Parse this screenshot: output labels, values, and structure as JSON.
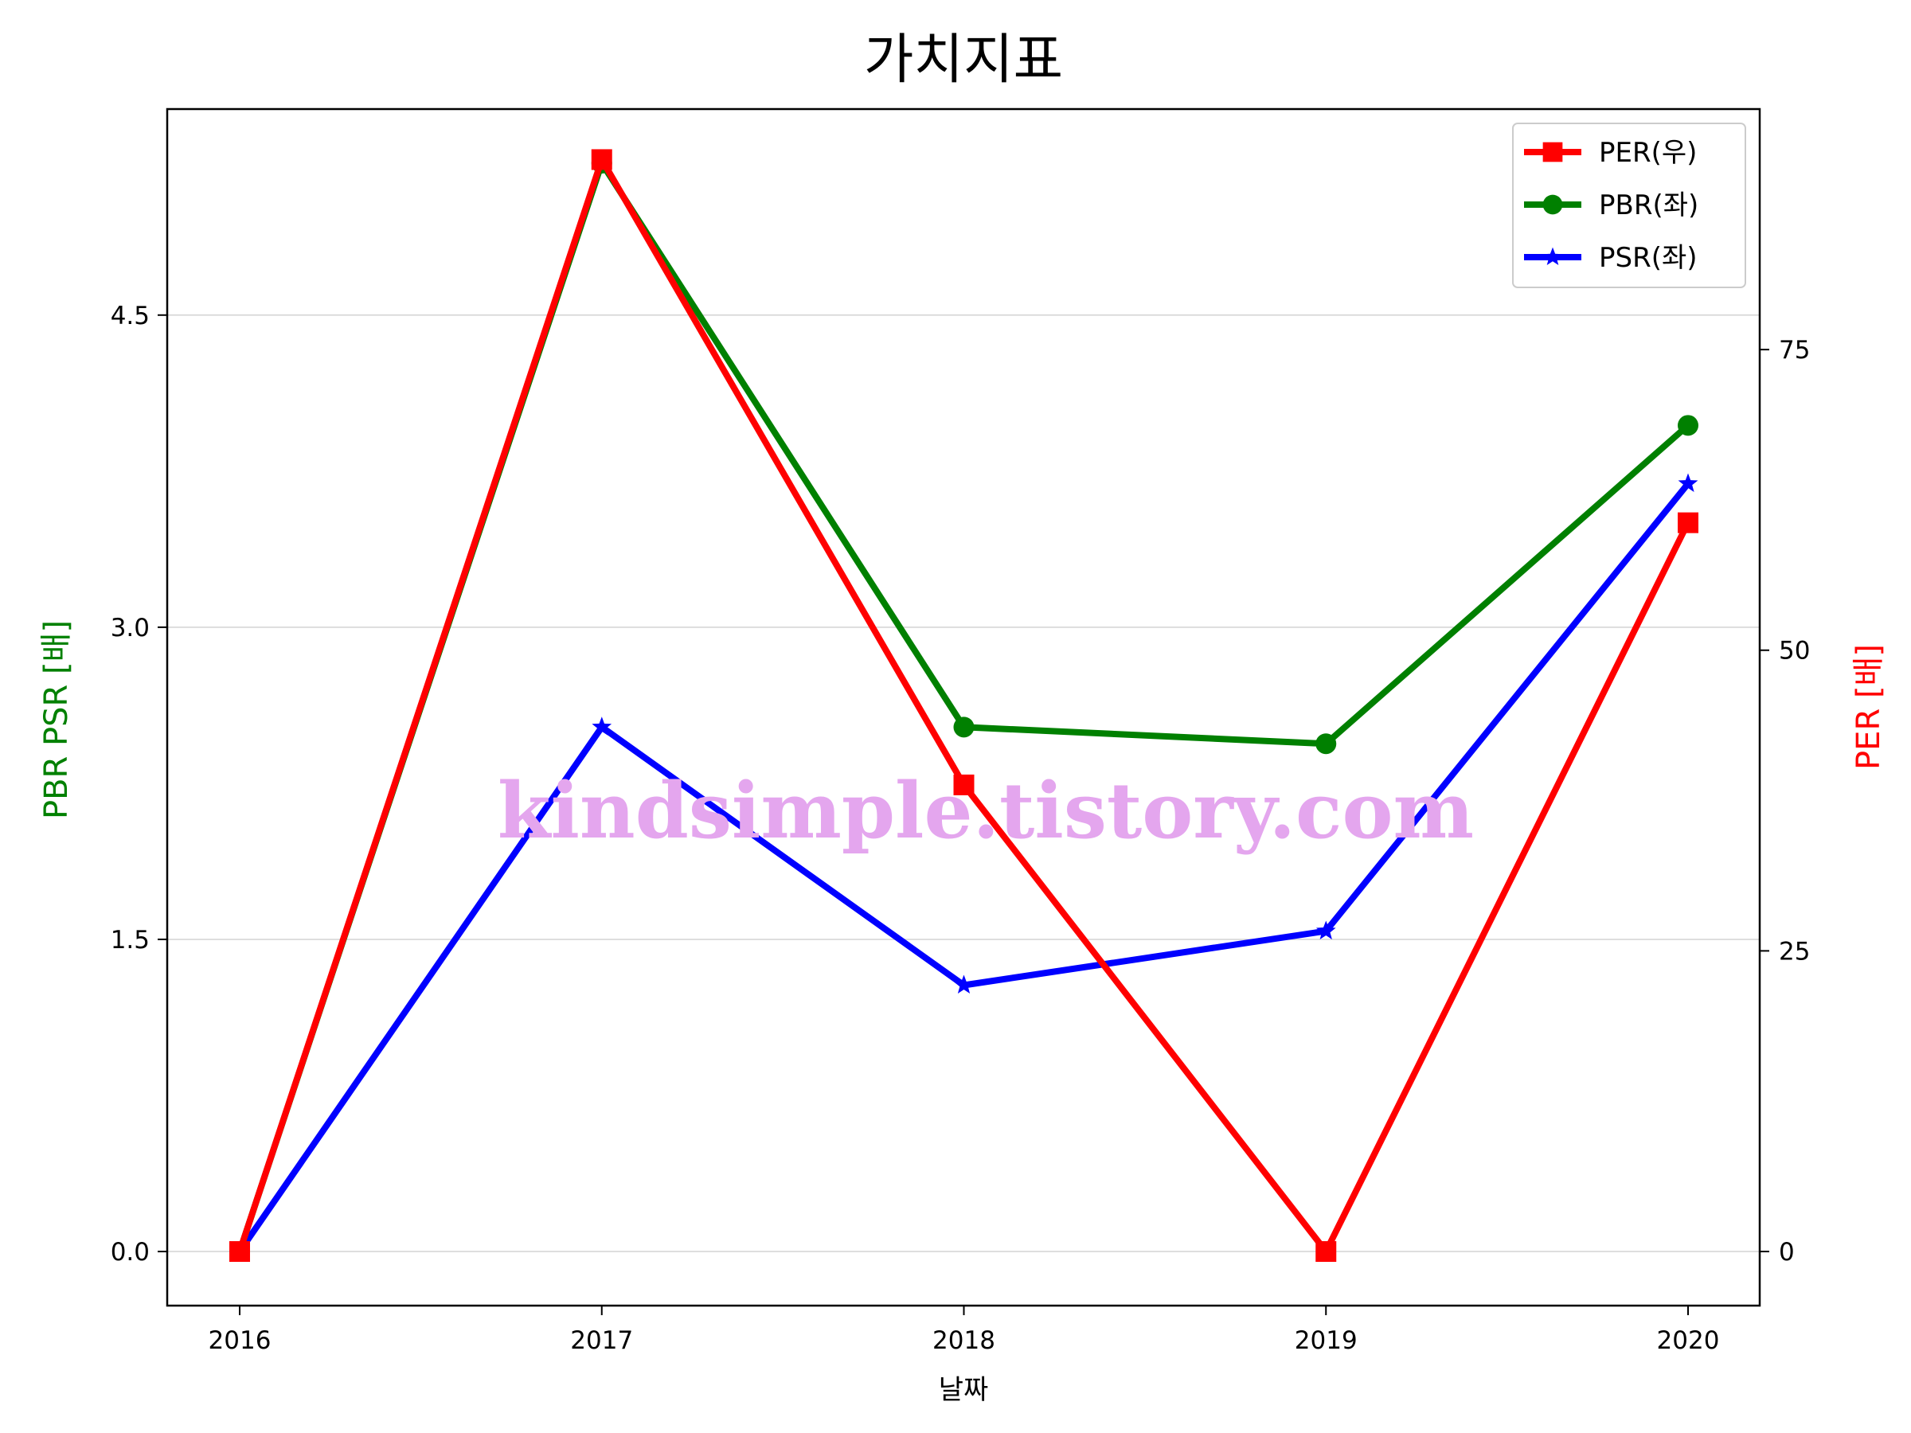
{
  "chart_data": {
    "type": "line",
    "title": "가치지표",
    "xlabel": "날짜",
    "ylabel_left": "PBR PSR [배]",
    "ylabel_right": "PER [배]",
    "categories": [
      "2016",
      "2017",
      "2018",
      "2019",
      "2020"
    ],
    "ylim_left": [
      -0.26,
      5.49
    ],
    "ylim_right": [
      -4.5,
      95.0
    ],
    "yticks_left": [
      "0.0",
      "1.5",
      "3.0",
      "4.5"
    ],
    "yticks_right": [
      "0",
      "25",
      "50",
      "75"
    ],
    "grid": "horizontal (left axis)",
    "legend_position": "top-right",
    "series": [
      {
        "name": "PER(우)",
        "axis": "right",
        "color": "#ff0000",
        "marker": "square",
        "values": [
          0,
          90.8,
          38.8,
          0,
          60.6
        ]
      },
      {
        "name": "PBR(좌)",
        "axis": "left",
        "color": "#008000",
        "marker": "circle",
        "values": [
          0,
          5.23,
          2.52,
          2.44,
          3.97
        ]
      },
      {
        "name": "PSR(좌)",
        "axis": "left",
        "color": "#0000ff",
        "marker": "star",
        "values": [
          0,
          2.52,
          1.28,
          1.54,
          3.69
        ]
      }
    ]
  },
  "watermark": "kindsimple.tistory.com"
}
